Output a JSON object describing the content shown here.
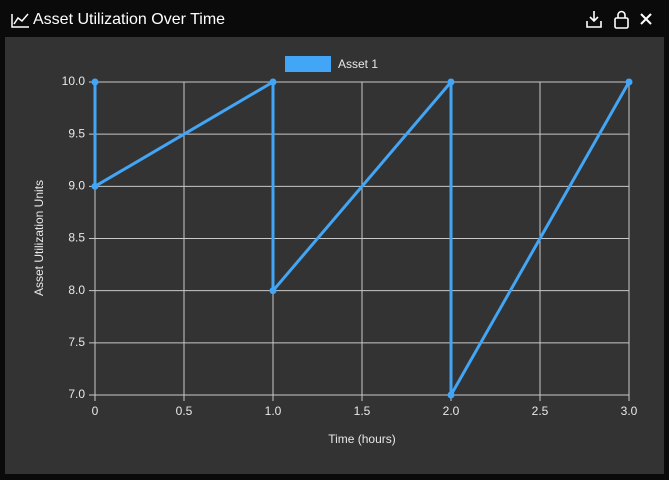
{
  "chart_data": {
    "type": "line",
    "title": "Asset Utilization Over Time",
    "x_label": "Time (hours)",
    "y_label": "Asset Utilization Units",
    "x": [
      0,
      0,
      1,
      1,
      2,
      2,
      3
    ],
    "series": [
      {
        "name": "Asset 1",
        "color": "#42a5f5",
        "values": [
          10,
          9,
          10,
          8,
          10,
          7,
          10
        ]
      }
    ],
    "xlim": [
      0,
      3
    ],
    "xticks": [
      0,
      0.5,
      {
        "value": 1,
        "label": "1.0"
      },
      1.5,
      {
        "value": 2,
        "label": "2.0"
      },
      2.5,
      {
        "value": 3,
        "label": "3.0"
      }
    ],
    "ylim": [
      7,
      10
    ],
    "yticks": [
      {
        "value": 7,
        "label": "7.0"
      },
      7.5,
      {
        "value": 8,
        "label": "8.0"
      },
      8.5,
      {
        "value": 9,
        "label": "9.0"
      },
      9.5,
      {
        "value": 10,
        "label": "10.0"
      }
    ],
    "grid": true,
    "legend": "top"
  }
}
